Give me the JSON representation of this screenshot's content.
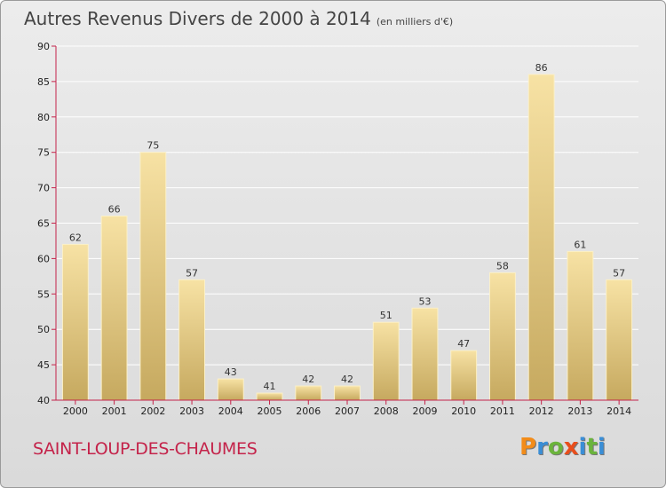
{
  "header": {
    "title": "Autres Revenus Divers de 2000 à 2014",
    "subtitle": "(en milliers d'€)"
  },
  "footer": {
    "commune": "SAINT-LOUP-DES-CHAUMES",
    "logo_text": "Proxiti"
  },
  "colors": {
    "bar_light": "#f7e2a4",
    "bar_dark": "#c6a95f",
    "axis": "#c4234a",
    "grid": "#ffffff",
    "commune_text": "#c4234a",
    "logo_letters": [
      "#f28c1a",
      "#3a8ed6",
      "#6bb43c",
      "#e94e1b",
      "#3a8ed6",
      "#6bb43c",
      "#3a8ed6"
    ]
  },
  "chart_data": {
    "type": "bar",
    "title": "Autres Revenus Divers de 2000 à 2014",
    "subtitle": "(en milliers d'€)",
    "categories": [
      "2000",
      "2001",
      "2002",
      "2003",
      "2004",
      "2005",
      "2006",
      "2007",
      "2008",
      "2009",
      "2010",
      "2011",
      "2012",
      "2013",
      "2014"
    ],
    "values": [
      62,
      66,
      75,
      57,
      43,
      41,
      42,
      42,
      51,
      53,
      47,
      58,
      86,
      61,
      57
    ],
    "ylim": [
      40,
      90
    ],
    "yticks": [
      40,
      45,
      50,
      55,
      60,
      65,
      70,
      75,
      80,
      85,
      90
    ],
    "grid": true,
    "data_labels": true
  }
}
